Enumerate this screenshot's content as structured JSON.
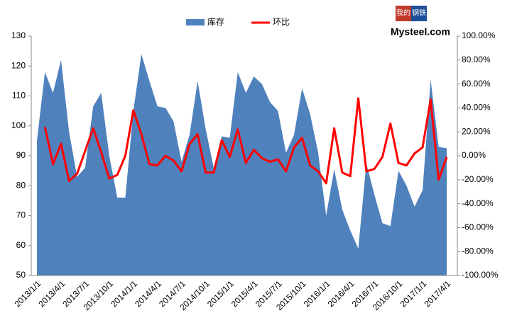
{
  "chart_data": {
    "type": "area_line",
    "logo": {
      "line1": "我的",
      "line2": "钢铁",
      "brand": "Mysteel.com"
    },
    "categories": [
      "2013/1/1",
      null,
      null,
      "2013/4/1",
      null,
      null,
      "2013/7/1",
      null,
      null,
      "2013/10/1",
      null,
      null,
      "2014/1/1",
      null,
      null,
      "2014/4/1",
      null,
      null,
      "2014/7/1",
      null,
      null,
      "2014/10/1",
      null,
      null,
      "2015/1/1",
      null,
      null,
      "2015/4/1",
      null,
      null,
      "2015/7/1",
      null,
      null,
      "2015/10/1",
      null,
      null,
      "2016/1/1",
      null,
      null,
      "2016/4/1",
      null,
      null,
      "2016/7/1",
      null,
      null,
      "2016/10/1",
      null,
      null,
      "2017/1/1",
      null,
      null,
      "2017/4/1"
    ],
    "series": [
      {
        "name": "库存",
        "color": "#4f81bd",
        "axis": "y",
        "values": [
          95,
          118,
          111,
          122,
          98,
          83,
          86,
          106.5,
          111,
          90,
          76,
          76,
          105,
          124,
          115,
          106.5,
          106,
          101.5,
          88,
          97,
          115,
          99,
          86,
          96.5,
          96,
          118,
          111,
          116.5,
          114,
          108,
          105,
          91,
          97,
          112.5,
          104,
          91,
          70,
          85.5,
          72,
          65,
          59,
          87.5,
          77,
          67.5,
          66.5,
          85,
          80,
          73,
          78.5,
          115.5,
          93,
          92.5
        ]
      },
      {
        "name": "环比",
        "color": "#ff0000",
        "axis": "y2",
        "values": [
          null,
          24,
          -7,
          10,
          -21,
          -15,
          4,
          23,
          3,
          -19,
          -16,
          0,
          38,
          18,
          -7,
          -8,
          0,
          -4,
          -13,
          10,
          18,
          -14,
          -14,
          13,
          -1,
          22,
          -6,
          5,
          -2,
          -5,
          -3,
          -13,
          7,
          15,
          -8,
          -13,
          -23,
          23,
          -14,
          -17,
          48,
          -13,
          -11,
          -1,
          27,
          -6,
          -8,
          2,
          7,
          47,
          -20,
          -1
        ]
      }
    ],
    "ylim": [
      50,
      130
    ],
    "yticks": [
      50,
      60,
      70,
      80,
      90,
      100,
      110,
      120,
      130
    ],
    "y2lim": [
      -100,
      100
    ],
    "y2ticks": [
      {
        "value": -100,
        "label": "-100.00%"
      },
      {
        "value": -80,
        "label": "-80.00%"
      },
      {
        "value": -60,
        "label": "-60.00%"
      },
      {
        "value": -40,
        "label": "-40.00%"
      },
      {
        "value": -20,
        "label": "-20.00%"
      },
      {
        "value": 0,
        "label": "0.00%"
      },
      {
        "value": 20,
        "label": "20.00%"
      },
      {
        "value": 40,
        "label": "40.00%"
      },
      {
        "value": 60,
        "label": "60.00%"
      },
      {
        "value": 80,
        "label": "80.00%"
      },
      {
        "value": 100,
        "label": "100.00%"
      }
    ],
    "legend": "top"
  }
}
